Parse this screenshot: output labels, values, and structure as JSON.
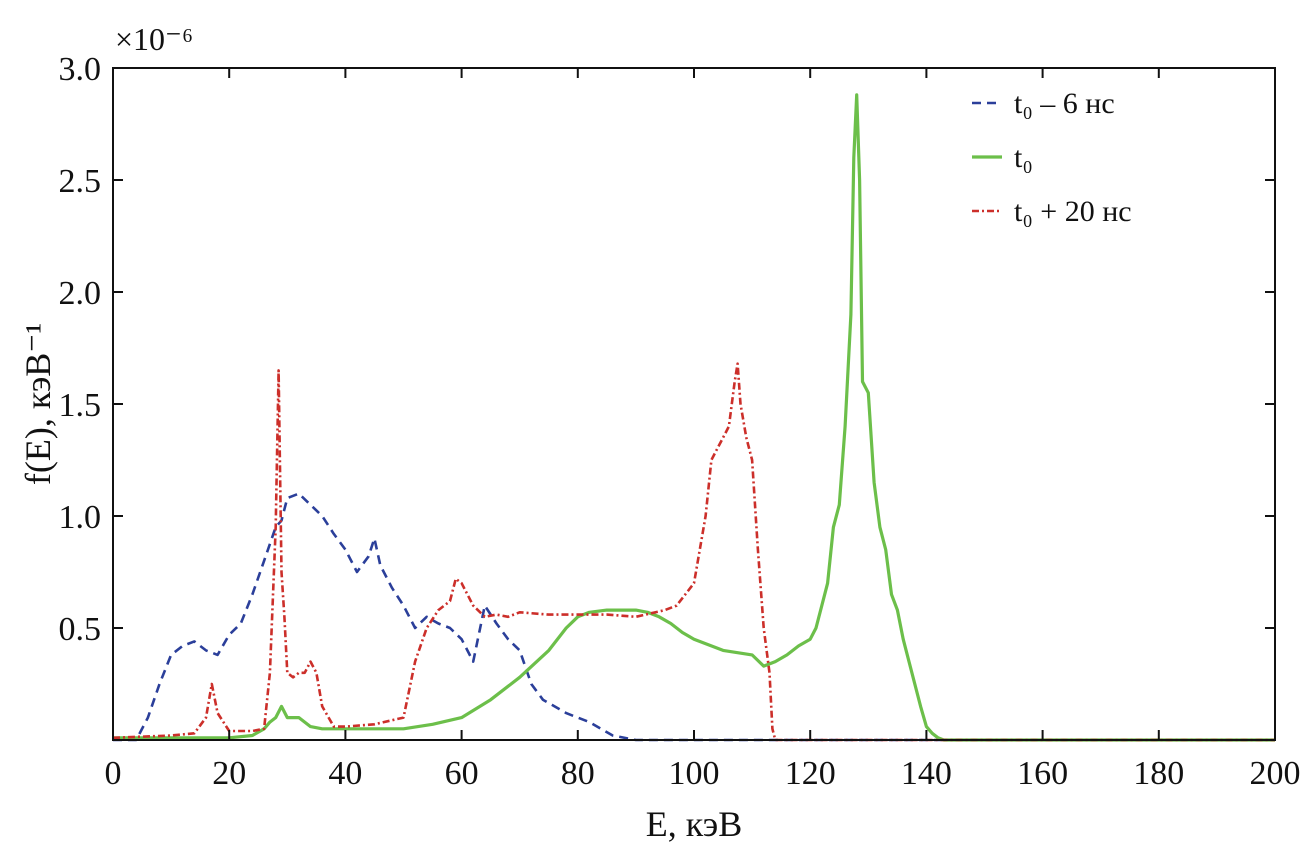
{
  "chart_data": {
    "type": "line",
    "title": "",
    "xlabel": "E, кэВ",
    "ylabel": "f(E), кэВ⁻¹",
    "y_multiplier": "×10⁻⁶",
    "xlim": [
      0,
      200
    ],
    "ylim": [
      0,
      3.0
    ],
    "x_ticks": [
      0,
      20,
      40,
      60,
      80,
      100,
      120,
      140,
      160,
      180,
      200
    ],
    "y_ticks": [
      0.5,
      1.0,
      1.5,
      2.0,
      2.5,
      3.0
    ],
    "y_tick_labels": [
      "0.5",
      "1.0",
      "1.5",
      "2.0",
      "2.5",
      "3.0"
    ],
    "grid": false,
    "legend_position": "top-right",
    "series": [
      {
        "name": "t₀ – 6 нс",
        "color": "#2b3f9a",
        "style": "dashed",
        "x": [
          0,
          4,
          6,
          8,
          10,
          12,
          14,
          16,
          18,
          20,
          22,
          24,
          26,
          28,
          29,
          30,
          32,
          34,
          36,
          38,
          40,
          42,
          44,
          45,
          46,
          48,
          50,
          52,
          54,
          56,
          58,
          60,
          62,
          64,
          66,
          68,
          70,
          72,
          74,
          76,
          78,
          80,
          82,
          84,
          86,
          90,
          100,
          120,
          140,
          160,
          180,
          200
        ],
        "y": [
          0,
          0,
          0.1,
          0.25,
          0.38,
          0.42,
          0.44,
          0.4,
          0.38,
          0.47,
          0.52,
          0.65,
          0.8,
          0.95,
          0.98,
          1.08,
          1.1,
          1.05,
          1.0,
          0.92,
          0.85,
          0.75,
          0.82,
          0.9,
          0.78,
          0.68,
          0.6,
          0.5,
          0.55,
          0.52,
          0.5,
          0.45,
          0.35,
          0.6,
          0.52,
          0.45,
          0.4,
          0.25,
          0.18,
          0.15,
          0.12,
          0.1,
          0.08,
          0.05,
          0.02,
          0,
          0,
          0,
          0,
          0,
          0,
          0
        ]
      },
      {
        "name": "t₀",
        "color": "#6cbf4a",
        "style": "solid",
        "x": [
          0,
          10,
          20,
          24,
          26,
          27,
          28,
          29,
          30,
          32,
          34,
          36,
          40,
          50,
          55,
          60,
          65,
          70,
          75,
          78,
          80,
          82,
          85,
          88,
          90,
          92,
          94,
          96,
          98,
          100,
          105,
          110,
          112,
          114,
          116,
          118,
          120,
          121,
          122,
          123,
          124,
          125,
          126,
          127,
          127.5,
          128,
          128.5,
          129,
          130,
          131,
          132,
          133,
          134,
          135,
          136,
          137,
          138,
          139,
          140,
          141,
          142,
          143,
          144,
          150,
          160,
          180,
          200
        ],
        "y": [
          0.01,
          0.01,
          0.01,
          0.02,
          0.05,
          0.08,
          0.1,
          0.15,
          0.1,
          0.1,
          0.06,
          0.05,
          0.05,
          0.05,
          0.07,
          0.1,
          0.18,
          0.28,
          0.4,
          0.5,
          0.55,
          0.57,
          0.58,
          0.58,
          0.58,
          0.57,
          0.55,
          0.52,
          0.48,
          0.45,
          0.4,
          0.38,
          0.33,
          0.35,
          0.38,
          0.42,
          0.45,
          0.5,
          0.6,
          0.7,
          0.95,
          1.05,
          1.4,
          1.9,
          2.6,
          2.88,
          2.5,
          1.6,
          1.55,
          1.15,
          0.95,
          0.85,
          0.65,
          0.58,
          0.45,
          0.35,
          0.25,
          0.15,
          0.06,
          0.03,
          0.01,
          0,
          0,
          0,
          0,
          0,
          0
        ]
      },
      {
        "name": "t₀ + 20 нс",
        "color": "#cc2f2a",
        "style": "dashdot",
        "x": [
          0,
          10,
          14,
          16,
          17,
          18,
          20,
          24,
          26,
          27,
          28,
          28.5,
          29,
          29.5,
          30,
          31,
          32,
          33,
          34,
          35,
          36,
          38,
          40,
          45,
          50,
          52,
          54,
          56,
          58,
          59,
          60,
          62,
          64,
          66,
          68,
          70,
          75,
          80,
          85,
          90,
          95,
          97,
          100,
          102,
          103,
          104,
          105,
          106,
          107,
          107.5,
          108,
          109,
          110,
          111,
          112,
          113,
          113.5,
          114,
          120,
          140,
          160,
          180,
          200
        ],
        "y": [
          0.01,
          0.02,
          0.03,
          0.1,
          0.25,
          0.12,
          0.04,
          0.04,
          0.05,
          0.3,
          0.95,
          1.65,
          0.75,
          0.55,
          0.3,
          0.28,
          0.3,
          0.3,
          0.35,
          0.3,
          0.15,
          0.06,
          0.06,
          0.07,
          0.1,
          0.35,
          0.5,
          0.58,
          0.62,
          0.72,
          0.7,
          0.6,
          0.55,
          0.56,
          0.55,
          0.57,
          0.56,
          0.56,
          0.56,
          0.55,
          0.58,
          0.6,
          0.7,
          1.0,
          1.25,
          1.3,
          1.35,
          1.4,
          1.6,
          1.68,
          1.5,
          1.35,
          1.25,
          0.85,
          0.5,
          0.3,
          0.05,
          0,
          0,
          0,
          0,
          0,
          0
        ]
      }
    ]
  }
}
